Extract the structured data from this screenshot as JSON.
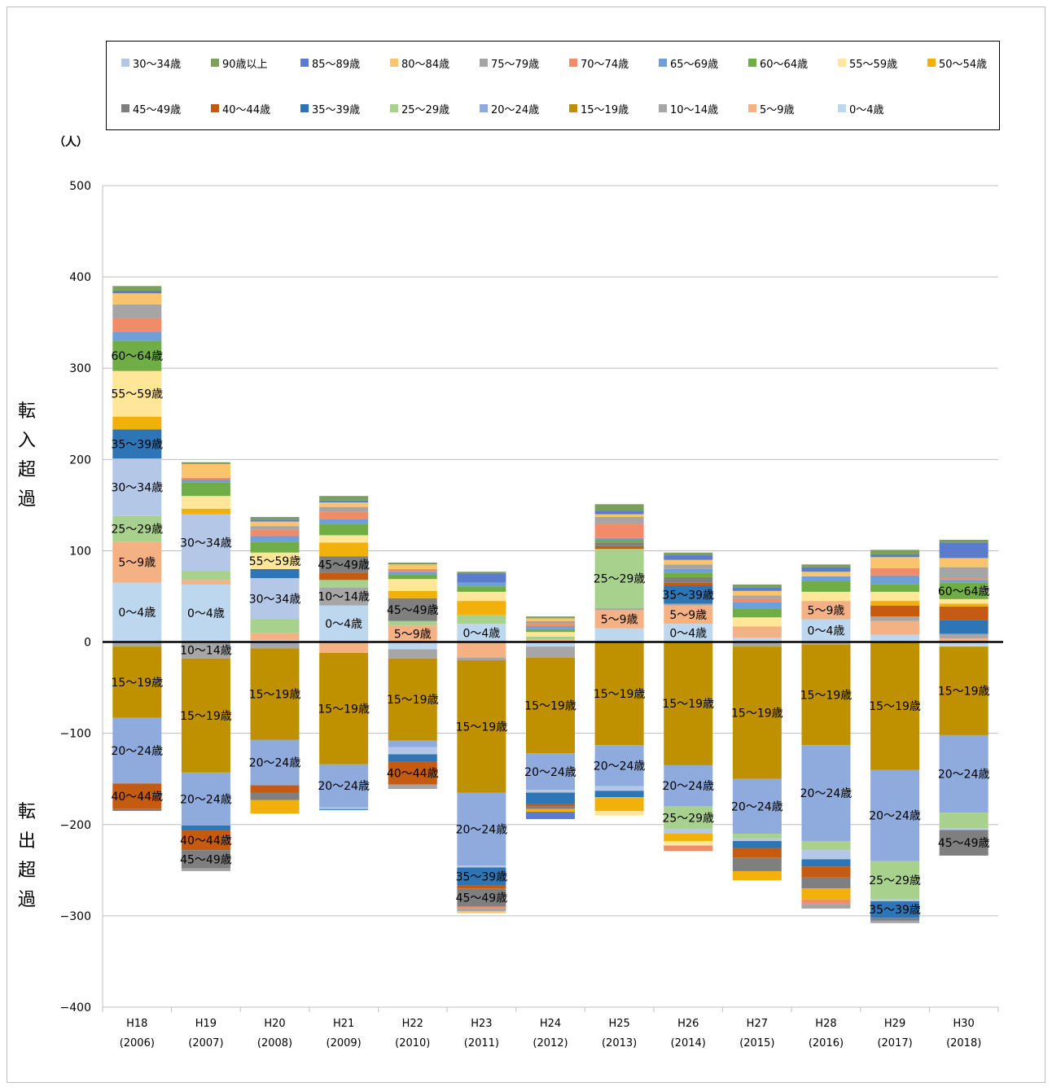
{
  "chart_data": {
    "type": "bar",
    "stacked": true,
    "title": "",
    "ylabel_unit": "（人）",
    "side_labels": {
      "top": "転入超過",
      "bottom": "転出超過"
    },
    "ylim": [
      -400,
      500
    ],
    "yticks": [
      500,
      400,
      300,
      200,
      100,
      0,
      -100,
      -200,
      -300,
      -400
    ],
    "ytick_labels": [
      "500",
      "400",
      "300",
      "200",
      "100",
      "0",
      "−100",
      "−200",
      "−300",
      "−400"
    ],
    "grid": true,
    "legend_position": "top",
    "categories": [
      {
        "era": "H18",
        "year": "(2006)"
      },
      {
        "era": "H19",
        "year": "(2007)"
      },
      {
        "era": "H20",
        "year": "(2008)"
      },
      {
        "era": "H21",
        "year": "(2009)"
      },
      {
        "era": "H22",
        "year": "(2010)"
      },
      {
        "era": "H23",
        "year": "(2011)"
      },
      {
        "era": "H24",
        "year": "(2012)"
      },
      {
        "era": "H25",
        "year": "(2013)"
      },
      {
        "era": "H26",
        "year": "(2014)"
      },
      {
        "era": "H27",
        "year": "(2015)"
      },
      {
        "era": "H28",
        "year": "(2016)"
      },
      {
        "era": "H29",
        "year": "(2017)"
      },
      {
        "era": "H30",
        "year": "(2018)"
      }
    ],
    "stack_order": [
      "0〜4歳",
      "5〜9歳",
      "10〜14歳",
      "15〜19歳",
      "20〜24歳",
      "25〜29歳",
      "30〜34歳",
      "35〜39歳",
      "40〜44歳",
      "45〜49歳",
      "50〜54歳",
      "55〜59歳",
      "60〜64歳",
      "65〜69歳",
      "70〜74歳",
      "75〜79歳",
      "80〜84歳",
      "85〜89歳",
      "90歳以上"
    ],
    "legend_row1": [
      "30〜34歳",
      "90歳以上",
      "85〜89歳",
      "80〜84歳",
      "75〜79歳",
      "70〜74歳",
      "65〜69歳",
      "60〜64歳",
      "55〜59歳",
      "50〜54歳"
    ],
    "legend_row2": [
      "45〜49歳",
      "40〜44歳",
      "35〜39歳",
      "25〜29歳",
      "20〜24歳",
      "15〜19歳",
      "10〜14歳",
      "5〜9歳",
      "0〜4歳"
    ],
    "colors": {
      "0〜4歳": "#bdd7ee",
      "5〜9歳": "#f4b183",
      "10〜14歳": "#a6a6a6",
      "15〜19歳": "#bf9000",
      "20〜24歳": "#8faadc",
      "25〜29歳": "#a9d18e",
      "30〜34歳": "#b4c7e7",
      "35〜39歳": "#2e75b6",
      "40〜44歳": "#c55a11",
      "45〜49歳": "#7f7f7f",
      "50〜54歳": "#f2b00a",
      "55〜59歳": "#ffe699",
      "60〜64歳": "#70ad47",
      "65〜69歳": "#6f9fd8",
      "70〜74歳": "#f08c6a",
      "75〜79歳": "#a5a5a5",
      "80〜84歳": "#f9c46c",
      "85〜89歳": "#5b7ccc",
      "90歳以上": "#7ba05b"
    },
    "series": [
      {
        "name": "0〜4歳",
        "values": [
          65,
          63,
          2,
          40,
          -8,
          20,
          -5,
          15,
          20,
          5,
          25,
          8,
          -5
        ]
      },
      {
        "name": "5〜9歳",
        "values": [
          45,
          5,
          8,
          -12,
          18,
          -17,
          3,
          20,
          20,
          12,
          20,
          15,
          4
        ]
      },
      {
        "name": "10〜14歳",
        "values": [
          -5,
          -18,
          -7,
          20,
          -10,
          -3,
          -12,
          2,
          2,
          -5,
          -3,
          5,
          5
        ]
      },
      {
        "name": "15〜19歳",
        "values": [
          -78,
          -125,
          -100,
          -122,
          -90,
          -145,
          -105,
          -113,
          -135,
          -145,
          -110,
          -140,
          -97
        ]
      },
      {
        "name": "20〜24歳",
        "values": [
          -72,
          -58,
          -50,
          -47,
          -7,
          -80,
          -40,
          -45,
          -45,
          -60,
          -105,
          -100,
          -85
        ]
      },
      {
        "name": "25〜29歳",
        "values": [
          28,
          10,
          15,
          8,
          5,
          10,
          3,
          65,
          -25,
          -5,
          -10,
          -42,
          -17
        ]
      },
      {
        "name": "30〜34歳",
        "values": [
          63,
          62,
          45,
          -2,
          -8,
          -2,
          -3,
          -5,
          -5,
          -3,
          -10,
          -2,
          -2
        ]
      },
      {
        "name": "35〜39歳",
        "values": [
          32,
          -5,
          10,
          -1,
          -8,
          -20,
          -12,
          -7,
          20,
          -8,
          -8,
          -18,
          15
        ]
      },
      {
        "name": "40〜44歳",
        "values": [
          -28,
          -22,
          -8,
          8,
          -25,
          -3,
          -3,
          3,
          3,
          -10,
          -12,
          12,
          15
        ]
      },
      {
        "name": "45〜49歳",
        "values": [
          -2,
          -20,
          -8,
          18,
          25,
          -20,
          -3,
          4,
          6,
          -15,
          -12,
          -3,
          -28
        ]
      },
      {
        "name": "50〜54歳",
        "values": [
          14,
          6,
          -15,
          15,
          8,
          15,
          -3,
          -15,
          -8,
          -10,
          -12,
          5,
          3
        ]
      },
      {
        "name": "55〜59歳",
        "values": [
          50,
          14,
          18,
          8,
          13,
          10,
          5,
          -5,
          -5,
          10,
          10,
          10,
          5
        ]
      },
      {
        "name": "60〜64歳",
        "values": [
          33,
          15,
          12,
          12,
          5,
          6,
          3,
          3,
          5,
          10,
          12,
          8,
          18
        ]
      },
      {
        "name": "65〜69歳",
        "values": [
          10,
          3,
          6,
          6,
          3,
          4,
          3,
          2,
          4,
          7,
          5,
          10,
          3
        ]
      },
      {
        "name": "70〜74歳",
        "values": [
          15,
          2,
          7,
          8,
          3,
          -2,
          3,
          15,
          -6,
          4,
          -5,
          8,
          2
        ]
      },
      {
        "name": "75〜79歳",
        "values": [
          15,
          -3,
          4,
          5,
          -5,
          -3,
          3,
          8,
          5,
          3,
          -5,
          -3,
          12
        ]
      },
      {
        "name": "80〜84歳",
        "values": [
          12,
          15,
          5,
          5,
          5,
          -2,
          3,
          3,
          5,
          5,
          5,
          12,
          10
        ]
      },
      {
        "name": "85〜89歳",
        "values": [
          3,
          0,
          2,
          2,
          0,
          10,
          -8,
          4,
          5,
          4,
          5,
          3,
          17
        ]
      },
      {
        "name": "90歳以上",
        "values": [
          5,
          2,
          3,
          5,
          2,
          2,
          2,
          7,
          3,
          3,
          3,
          5,
          3
        ]
      }
    ]
  }
}
